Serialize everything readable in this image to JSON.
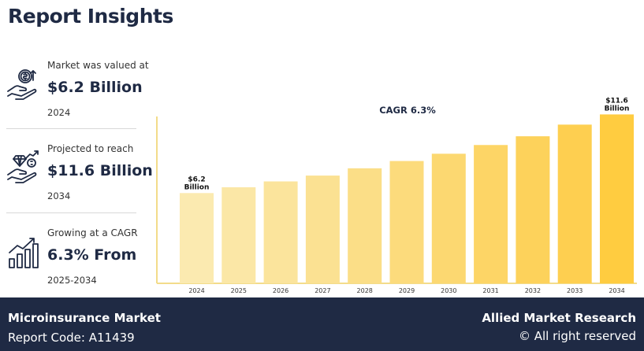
{
  "header": {
    "title": "Report Insights"
  },
  "stats": [
    {
      "label": "Market was valued at",
      "value": "$6.2 Billion",
      "year": "2024",
      "icon": "money-hand-icon"
    },
    {
      "label": "Projected to reach",
      "value": "$11.6 Billion",
      "year": "2034",
      "icon": "diamond-growth-icon"
    },
    {
      "label": "Growing at a CAGR",
      "value": "6.3% From",
      "year": "2025-2034",
      "icon": "growth-chart-icon"
    }
  ],
  "chart_data": {
    "type": "bar",
    "title": "CAGR 6.3%",
    "categories": [
      "2024",
      "2025",
      "2026",
      "2027",
      "2028",
      "2029",
      "2030",
      "2031",
      "2032",
      "2033",
      "2034"
    ],
    "values": [
      6.2,
      6.6,
      7.0,
      7.4,
      7.9,
      8.4,
      8.9,
      9.5,
      10.1,
      10.9,
      11.6
    ],
    "data_labels": [
      {
        "index": 0,
        "lines": [
          "$6.2",
          "Billion"
        ]
      },
      {
        "index": 10,
        "lines": [
          "$11.6",
          "Billion"
        ]
      }
    ],
    "colors": [
      "#fbeab0",
      "#fbe7a6",
      "#fbe49c",
      "#fbe192",
      "#fbde87",
      "#fcdb7c",
      "#fcd871",
      "#fdd566",
      "#fdd25b",
      "#fecf50",
      "#ffcc40"
    ],
    "axis_color": "#f3dc8a",
    "ylim": [
      0,
      12
    ]
  },
  "footer": {
    "market": "Microinsurance Market",
    "report_code": "Report Code: A11439",
    "brand": "Allied Market Research",
    "copyright": "© All right reserved"
  }
}
